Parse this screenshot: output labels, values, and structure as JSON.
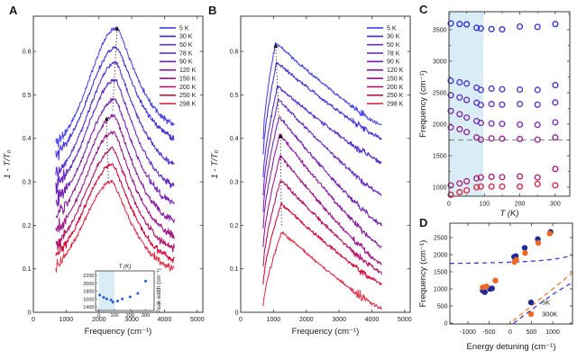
{
  "figure_type": "scientific-multipanel-figure",
  "panels": {
    "a": {
      "label": "A"
    },
    "b": {
      "label": "B"
    },
    "c": {
      "label": "C"
    },
    "d": {
      "label": "D"
    }
  },
  "colors": {
    "shade": "#d8edf5",
    "frame": "#3a3a3a",
    "dashed_gray": "#909090",
    "arrow": "#111111",
    "inset_marker": "#2a5bd7",
    "d_blue": "#1f2a99",
    "d_orange": "#f26822",
    "d_blue_dash": "#3b3bd9",
    "d_orange_dash": "#f07a30"
  },
  "chart_data": [
    {
      "id": "A",
      "type": "line",
      "xlabel": "Frequency (cm⁻¹)",
      "ylabel": "1 - T/T₀",
      "xlim": [
        0,
        5170
      ],
      "ylim": [
        0,
        0.681
      ],
      "xticks": [
        0,
        1000,
        2000,
        3000,
        4000,
        5000
      ],
      "yticks": [
        0,
        0.1,
        0.2,
        0.3,
        0.4,
        0.5,
        0.6
      ],
      "curve_x_range": [
        685,
        4300
      ],
      "series": [
        {
          "name": "5 K",
          "color": "#4f4de6",
          "peak_x": 2550,
          "peak_y": 0.655,
          "y_left": 0.37,
          "y_right": 0.43
        },
        {
          "name": "30 K",
          "color": "#4836d6",
          "peak_x": 2535,
          "peak_y": 0.61,
          "y_left": 0.345,
          "y_right": 0.4
        },
        {
          "name": "50 K",
          "color": "#5a34cb",
          "peak_x": 2520,
          "peak_y": 0.575,
          "y_left": 0.3,
          "y_right": 0.34
        },
        {
          "name": "78 K",
          "color": "#6a2ec0",
          "peak_x": 2505,
          "peak_y": 0.535,
          "y_left": 0.27,
          "y_right": 0.29
        },
        {
          "name": "90 K",
          "color": "#7928b2",
          "peak_x": 2490,
          "peak_y": 0.49,
          "y_left": 0.235,
          "y_right": 0.25
        },
        {
          "name": "120 K",
          "color": "#8b23a1",
          "peak_x": 2470,
          "peak_y": 0.452,
          "y_left": 0.2,
          "y_right": 0.21
        },
        {
          "name": "150 K",
          "color": "#9e1e8a",
          "peak_x": 2455,
          "peak_y": 0.415,
          "y_left": 0.165,
          "y_right": 0.175
        },
        {
          "name": "200 K",
          "color": "#b4186a",
          "peak_x": 2440,
          "peak_y": 0.375,
          "y_left": 0.135,
          "y_right": 0.145
        },
        {
          "name": "250 K",
          "color": "#d60f3c",
          "peak_x": 2420,
          "peak_y": 0.34,
          "y_left": 0.11,
          "y_right": 0.12
        },
        {
          "name": "298 K",
          "color": "#dd3a50",
          "peak_x": 2400,
          "peak_y": 0.3,
          "y_left": 0.085,
          "y_right": 0.1
        }
      ],
      "arrows": [
        {
          "x1": 2290,
          "y1": 0.3,
          "x2": 2235,
          "y2": 0.44
        },
        {
          "x1": 2420,
          "y1": 0.465,
          "x2": 2550,
          "y2": 0.648
        }
      ],
      "inset": {
        "xlabel": "T (K)",
        "ylabel": "Peak width (cm⁻¹)",
        "xlim": [
          -22,
          355
        ],
        "ylim": [
          1310,
          2315
        ],
        "xticks": [
          0,
          100,
          200,
          300
        ],
        "yticks": [
          1400,
          1600,
          1800,
          2000,
          2200
        ],
        "shade_x": [
          0,
          100
        ],
        "points": [
          [
            5,
            1700
          ],
          [
            30,
            1645
          ],
          [
            50,
            1605
          ],
          [
            78,
            1575
          ],
          [
            90,
            1525
          ],
          [
            120,
            1550
          ],
          [
            150,
            1605
          ],
          [
            200,
            1655
          ],
          [
            250,
            1745
          ],
          [
            300,
            2055
          ]
        ]
      }
    },
    {
      "id": "B",
      "type": "line",
      "xlabel": "Frequency (cm⁻¹)",
      "ylabel": "1 - T/T₀",
      "xlim": [
        0,
        5170
      ],
      "ylim": [
        0,
        0.681
      ],
      "xticks": [
        0,
        1000,
        2000,
        3000,
        4000,
        5000
      ],
      "yticks": [
        0,
        0.1,
        0.2,
        0.3,
        0.4,
        0.5,
        0.6
      ],
      "curve_x_range": [
        685,
        4300
      ],
      "series": [
        {
          "name": "5 K",
          "color": "#4f4de6",
          "peak_x": 1060,
          "peak_y": 0.62,
          "y_left": 0.4,
          "y_right": 0.43
        },
        {
          "name": "30 K",
          "color": "#4836d6",
          "peak_x": 1090,
          "peak_y": 0.575,
          "y_left": 0.36,
          "y_right": 0.4
        },
        {
          "name": "50 K",
          "color": "#5a34cb",
          "peak_x": 1120,
          "peak_y": 0.52,
          "y_left": 0.31,
          "y_right": 0.345
        },
        {
          "name": "78 K",
          "color": "#6a2ec0",
          "peak_x": 1150,
          "peak_y": 0.49,
          "y_left": 0.27,
          "y_right": 0.27
        },
        {
          "name": "90 K",
          "color": "#7928b2",
          "peak_x": 1170,
          "peak_y": 0.45,
          "y_left": 0.235,
          "y_right": 0.2
        },
        {
          "name": "120 K",
          "color": "#8b23a1",
          "peak_x": 1190,
          "peak_y": 0.41,
          "y_left": 0.195,
          "y_right": 0.15
        },
        {
          "name": "150 K",
          "color": "#9e1e8a",
          "peak_x": 1205,
          "peak_y": 0.36,
          "y_left": 0.15,
          "y_right": 0.11
        },
        {
          "name": "200 K",
          "color": "#b4186a",
          "peak_x": 1220,
          "peak_y": 0.305,
          "y_left": 0.105,
          "y_right": 0.09
        },
        {
          "name": "250 K",
          "color": "#d60f3c",
          "peak_x": 1235,
          "peak_y": 0.25,
          "y_left": 0.065,
          "y_right": 0.065
        },
        {
          "name": "298 K",
          "color": "#dd3a50",
          "peak_x": 1255,
          "peak_y": 0.185,
          "y_left": 0.012,
          "y_right": 0.008
        }
      ],
      "arrows": [
        {
          "x1": 1245,
          "y1": 0.2,
          "x2": 1215,
          "y2": 0.4
        },
        {
          "x1": 1160,
          "y1": 0.445,
          "x2": 1070,
          "y2": 0.608
        }
      ]
    },
    {
      "id": "C",
      "type": "scatter",
      "xlabel": "T (K)",
      "ylabel": "Frequency (cm⁻¹)",
      "xlim": [
        0,
        341
      ],
      "ylim": [
        857,
        3786
      ],
      "xticks": [
        0,
        100,
        200,
        300
      ],
      "xminor": [
        50,
        150,
        250
      ],
      "yticks": [
        1000,
        1500,
        2000,
        2500,
        3000,
        3500
      ],
      "yminor": [
        1250,
        1750,
        2250,
        2750,
        3250,
        3750
      ],
      "shade_x": [
        0,
        97
      ],
      "dashed_line_y": 1750,
      "temperatures": [
        5,
        30,
        50,
        78,
        90,
        120,
        150,
        200,
        250,
        300
      ],
      "branches": [
        {
          "color": "#2b2bd6",
          "values": [
            3600,
            3590,
            3585,
            3530,
            3520,
            3510,
            3505,
            3550,
            3545,
            3590
          ]
        },
        {
          "color": "#4730cf",
          "values": [
            2690,
            2665,
            2645,
            2580,
            2545,
            2565,
            2555,
            2550,
            2545,
            2620
          ]
        },
        {
          "color": "#5e2cc2",
          "values": [
            2460,
            2425,
            2385,
            2340,
            2305,
            2320,
            2310,
            2320,
            2310,
            2345
          ]
        },
        {
          "color": "#7b26ae",
          "values": [
            2210,
            2160,
            2105,
            2050,
            2020,
            2010,
            2005,
            1995,
            1990,
            2030
          ]
        },
        {
          "color": "#8f2097",
          "values": [
            1950,
            1920,
            1875,
            1790,
            1755,
            1775,
            1770,
            1765,
            1755,
            1790
          ]
        },
        {
          "color": "#a51c7d",
          "values": [
            1030,
            1060,
            1095,
            1140,
            1155,
            1165,
            1160,
            1170,
            1155,
            1290
          ]
        },
        {
          "color": "#d9203a",
          "values": [
            880,
            920,
            950,
            1000,
            1010,
            1010,
            1010,
            1010,
            1050,
            1030
          ]
        }
      ]
    },
    {
      "id": "D",
      "type": "scatter",
      "xlabel": "Energy detuning (cm⁻¹)",
      "ylabel": "Frequency (cm⁻¹)",
      "xlim": [
        -1425,
        1468
      ],
      "ylim": [
        -26,
        2921
      ],
      "xticks": [
        -1000,
        -500,
        0,
        500,
        1000
      ],
      "yticks": [
        0,
        500,
        1000,
        1500,
        2000,
        2500
      ],
      "series": [
        {
          "name": "5K",
          "color": "#1f2a99",
          "points": [
            [
              -650,
              950
            ],
            [
              -600,
              905
            ],
            [
              -480,
              1000
            ],
            [
              -430,
              1015
            ],
            [
              90,
              1935
            ],
            [
              130,
              1960
            ],
            [
              340,
              2200
            ],
            [
              650,
              2455
            ],
            [
              950,
              2665
            ]
          ]
        },
        {
          "name": "300K",
          "color": "#f26822",
          "points": [
            [
              -650,
              1045
            ],
            [
              -560,
              1075
            ],
            [
              -350,
              1245
            ],
            [
              100,
              1790
            ],
            [
              140,
              1850
            ],
            [
              350,
              2050
            ],
            [
              660,
              2345
            ],
            [
              930,
              2620
            ]
          ]
        }
      ],
      "model_lines": {
        "uncoupled_line": {
          "slope": 1,
          "intercept": 1650
        },
        "phonon_frequency": 1700,
        "coupling_g": 380
      },
      "legend": [
        {
          "label": "5K",
          "color": "#1f2a99"
        },
        {
          "label": "300K",
          "color": "#f26822"
        }
      ]
    }
  ]
}
